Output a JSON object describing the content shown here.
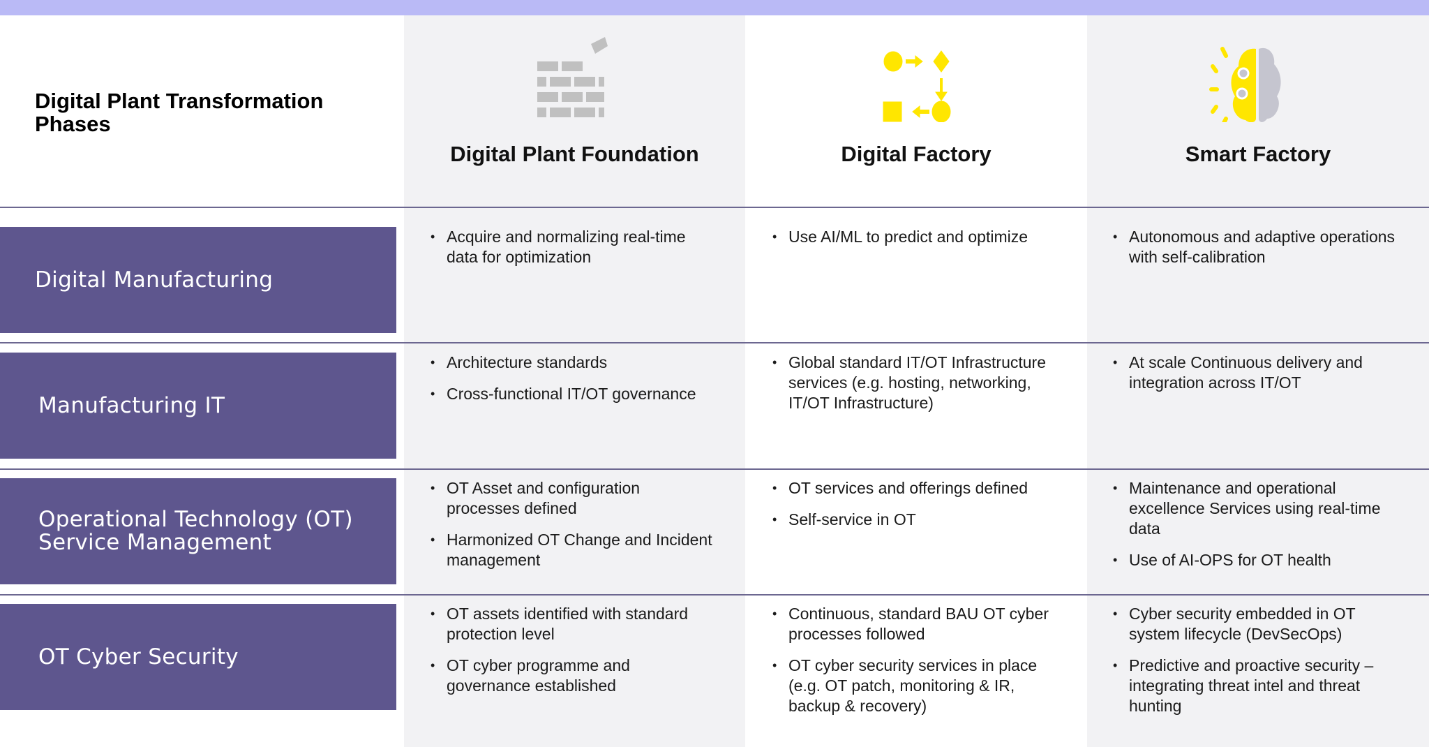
{
  "title": "Digital Plant Transformation Phases",
  "colors": {
    "top_bar": "#babaf6",
    "row_header": "#5e568e",
    "icon_yellow": "#ffe600",
    "icon_gray": "#c0c0c0"
  },
  "columns": [
    {
      "heading": "Digital Plant Foundation",
      "icon": "brick-wall-icon"
    },
    {
      "heading": "Digital Factory",
      "icon": "process-flow-icon"
    },
    {
      "heading": "Smart Factory",
      "icon": "brain-gears-icon"
    }
  ],
  "rows": [
    {
      "label": "Digital Manufacturing",
      "cells": [
        [
          "Acquire and normalizing real-time data for optimization"
        ],
        [
          "Use AI/ML to predict and optimize"
        ],
        [
          "Autonomous and adaptive operations with self-calibration"
        ]
      ]
    },
    {
      "label": "Manufacturing IT",
      "cells": [
        [
          "Architecture standards",
          "Cross-functional IT/OT governance"
        ],
        [
          "Global standard IT/OT Infrastructure services (e.g. hosting, networking, IT/OT Infrastructure)"
        ],
        [
          "At scale Continuous delivery and integration across IT/OT"
        ]
      ]
    },
    {
      "label": "Operational Technology (OT) Service Management",
      "cells": [
        [
          "OT Asset and configuration processes defined",
          "Harmonized OT Change and Incident management"
        ],
        [
          "OT services and offerings defined",
          "Self-service in OT"
        ],
        [
          "Maintenance and operational excellence Services using real-time data",
          "Use of AI-OPS for OT health"
        ]
      ]
    },
    {
      "label": "OT Cyber Security",
      "cells": [
        [
          "OT assets identified with standard protection level",
          "OT cyber programme and governance established"
        ],
        [
          "Continuous, standard BAU OT cyber processes followed",
          "OT cyber security services in place (e.g. OT patch, monitoring & IR, backup & recovery)"
        ],
        [
          "Cyber security embedded in OT system lifecycle (DevSecOps)",
          "Predictive and proactive security – integrating threat intel and threat hunting"
        ]
      ]
    }
  ]
}
